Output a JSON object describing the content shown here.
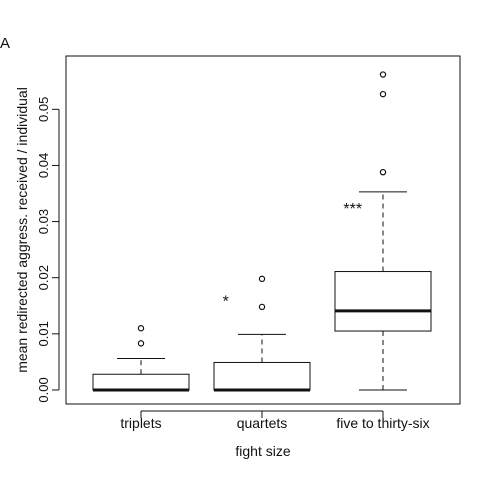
{
  "chart_data": {
    "type": "box",
    "panel_label": "A",
    "xlabel": "fight size",
    "ylabel": "mean redirected aggress. received / individual",
    "ylim": [
      -0.0025,
      0.0595
    ],
    "yticks": [
      0.0,
      0.01,
      0.02,
      0.03,
      0.04,
      0.05
    ],
    "ytick_labels": [
      "0.00",
      "0.01",
      "0.02",
      "0.03",
      "0.04",
      "0.05"
    ],
    "categories": [
      "triplets",
      "quartets",
      "five to thirty-six"
    ],
    "boxes": [
      {
        "whisker_low": 0.0,
        "q1": 0.0,
        "median": 0.0,
        "q3": 0.0028,
        "whisker_high": 0.0056,
        "outliers": [
          0.0083,
          0.011
        ]
      },
      {
        "whisker_low": 0.0,
        "q1": 0.0,
        "median": 0.0,
        "q3": 0.0049,
        "whisker_high": 0.0099,
        "outliers": [
          0.0148,
          0.0198
        ]
      },
      {
        "whisker_low": 0.0,
        "q1": 0.0105,
        "median": 0.0141,
        "q3": 0.0211,
        "whisker_high": 0.0353,
        "outliers": [
          0.0388,
          0.0527,
          0.0562
        ]
      }
    ],
    "annotations": [
      {
        "text": "*",
        "x": 1.7,
        "y": 0.0163
      },
      {
        "text": "***",
        "x": 2.75,
        "y": 0.0328
      }
    ],
    "grid": false,
    "legend": "none"
  }
}
